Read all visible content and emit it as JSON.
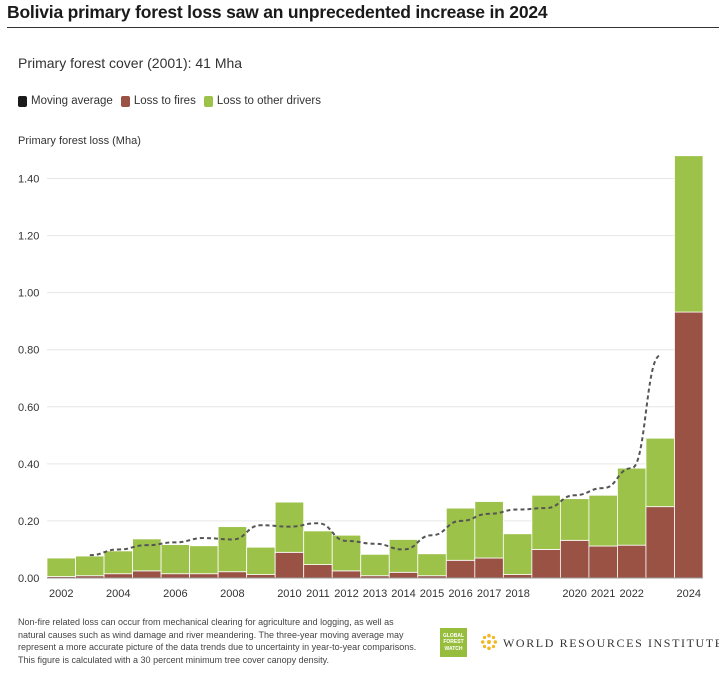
{
  "title": "Bolivia primary forest loss saw an unprecedented increase in 2024",
  "subtitle": "Primary forest cover (2001): 41 Mha",
  "legend": [
    {
      "label": "Moving average",
      "color": "#1a1a1a"
    },
    {
      "label": "Loss to fires",
      "color": "#9a5245"
    },
    {
      "label": "Loss to other drivers",
      "color": "#9dc24a"
    }
  ],
  "footnote": "Non-fire related loss can occur from mechanical clearing for agriculture and logging, as well as natural causes such as wind damage and river meandering. The three-year moving average may represent a more accurate picture of the data trends due to uncertainty in year-to-year comparisons. This figure is calculated with a 30 percent minimum tree cover canopy density.",
  "logos": {
    "gfw": [
      "GLOBAL",
      "FOREST",
      "WATCH"
    ],
    "wri": "WORLD RESOURCES INSTITUTE"
  },
  "chart_data": {
    "type": "bar",
    "stacked": true,
    "ylabel": "Primary forest loss (Mha)",
    "ylim": [
      0,
      1.5
    ],
    "yticks": [
      0,
      0.2,
      0.4,
      0.6,
      0.8,
      1.0,
      1.2,
      1.4
    ],
    "ytick_labels": [
      "0.00",
      "0.20",
      "0.40",
      "0.60",
      "0.80",
      "1.00",
      "1.20",
      "1.40"
    ],
    "categories": [
      "2002",
      "2003",
      "2004",
      "2005",
      "2006",
      "2007",
      "2008",
      "2009",
      "2010",
      "2011",
      "2012",
      "2013",
      "2014",
      "2015",
      "2016",
      "2017",
      "2018",
      "2019",
      "2020",
      "2021",
      "2022",
      "2023",
      "2024"
    ],
    "xtick_labels": [
      "2002",
      "",
      "2004",
      "",
      "2006",
      "",
      "2008",
      "",
      "2010",
      "2011",
      "2012",
      "2013",
      "2014",
      "2015",
      "2016",
      "2017",
      "2018",
      "",
      "2020",
      "2021",
      "2022",
      "",
      "2024"
    ],
    "series": [
      {
        "name": "Loss to fires",
        "color": "#9a5245",
        "values": [
          0.005,
          0.008,
          0.015,
          0.025,
          0.015,
          0.015,
          0.022,
          0.012,
          0.09,
          0.047,
          0.025,
          0.008,
          0.02,
          0.008,
          0.062,
          0.07,
          0.012,
          0.1,
          0.132,
          0.112,
          0.115,
          0.25,
          0.932
        ]
      },
      {
        "name": "Loss to other drivers",
        "color": "#9dc24a",
        "values": [
          0.065,
          0.069,
          0.08,
          0.112,
          0.102,
          0.098,
          0.158,
          0.096,
          0.176,
          0.118,
          0.125,
          0.075,
          0.115,
          0.077,
          0.183,
          0.198,
          0.143,
          0.19,
          0.146,
          0.178,
          0.27,
          0.24,
          0.548
        ]
      }
    ],
    "moving_average": {
      "name": "Moving average",
      "x": [
        "2003",
        "2004",
        "2005",
        "2006",
        "2007",
        "2008",
        "2009",
        "2010",
        "2011",
        "2012",
        "2013",
        "2014",
        "2015",
        "2016",
        "2017",
        "2018",
        "2019",
        "2020",
        "2021",
        "2022",
        "2023"
      ],
      "values": [
        0.08,
        0.1,
        0.115,
        0.125,
        0.14,
        0.135,
        0.185,
        0.18,
        0.192,
        0.13,
        0.12,
        0.1,
        0.15,
        0.2,
        0.225,
        0.24,
        0.245,
        0.29,
        0.315,
        0.385,
        0.78
      ],
      "style": "dashed",
      "color": "#555555"
    }
  }
}
